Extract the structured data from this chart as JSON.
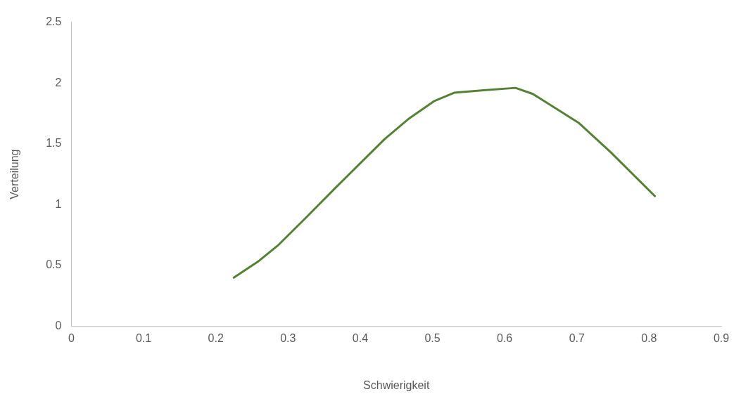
{
  "chart_data": {
    "type": "line",
    "xlabel": "Schwierigkeit",
    "ylabel": "Verteilung",
    "x": [
      0.225,
      0.258,
      0.287,
      0.326,
      0.366,
      0.405,
      0.434,
      0.468,
      0.502,
      0.53,
      0.571,
      0.615,
      0.639,
      0.703,
      0.747,
      0.808
    ],
    "series": [
      {
        "color": "#548235",
        "values": [
          0.4,
          0.53,
          0.67,
          0.9,
          1.14,
          1.37,
          1.54,
          1.71,
          1.85,
          1.92,
          1.94,
          1.96,
          1.91,
          1.67,
          1.43,
          1.07
        ]
      }
    ],
    "xlim": [
      0,
      0.9
    ],
    "xticks": [
      0,
      0.1,
      0.2,
      0.3,
      0.4,
      0.5,
      0.6,
      0.7,
      0.8,
      0.9
    ],
    "ylim": [
      0,
      2.5
    ],
    "yticks": [
      0,
      0.5,
      1,
      1.5,
      2,
      2.5
    ],
    "grid": false,
    "legend": false,
    "marker": "none",
    "line_style": "solid"
  }
}
